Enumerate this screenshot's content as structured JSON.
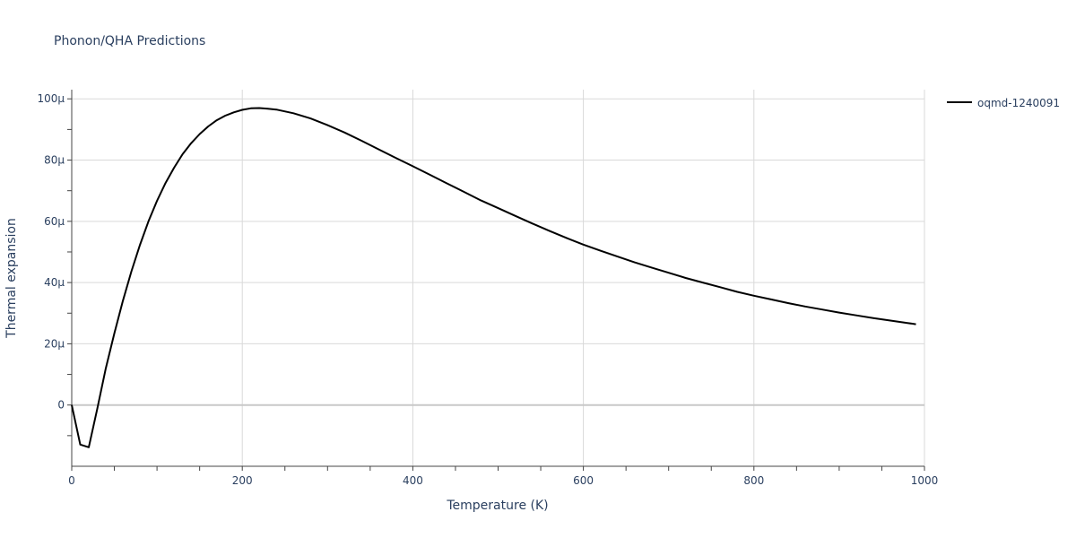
{
  "chart_data": {
    "type": "line",
    "title": "Phonon/QHA Predictions",
    "xlabel": "Temperature (K)",
    "ylabel": "Thermal expansion",
    "xlim": [
      0,
      1000
    ],
    "ylim": [
      -2e-05,
      0.000103
    ],
    "x_ticks": [
      0,
      200,
      400,
      600,
      800,
      1000
    ],
    "x_tick_labels": [
      "0",
      "200",
      "400",
      "600",
      "800",
      "1000"
    ],
    "y_ticks": [
      0,
      2e-05,
      4e-05,
      6e-05,
      8e-05,
      0.0001
    ],
    "y_tick_labels": [
      "0",
      "20μ",
      "40μ",
      "60μ",
      "80μ",
      "100μ"
    ],
    "grid": true,
    "legend_position": "top-right",
    "series": [
      {
        "name": "oqmd-1240091",
        "color": "#000000",
        "x": [
          0,
          10,
          20,
          30,
          40,
          50,
          60,
          70,
          80,
          90,
          100,
          110,
          120,
          130,
          140,
          150,
          160,
          170,
          180,
          190,
          200,
          210,
          220,
          230,
          240,
          260,
          280,
          300,
          320,
          340,
          360,
          380,
          400,
          420,
          440,
          460,
          480,
          500,
          520,
          540,
          560,
          580,
          600,
          620,
          640,
          660,
          680,
          700,
          720,
          740,
          760,
          780,
          800,
          820,
          840,
          860,
          880,
          900,
          920,
          940,
          960,
          980,
          990
        ],
        "y": [
          0,
          -1.29e-05,
          -1.38e-05,
          -1.2e-06,
          1.2e-05,
          2.35e-05,
          3.41e-05,
          4.37e-05,
          5.23e-05,
          6e-05,
          6.67e-05,
          7.25e-05,
          7.75e-05,
          8.19e-05,
          8.55e-05,
          8.85e-05,
          9.1e-05,
          9.3e-05,
          9.45e-05,
          9.56e-05,
          9.64e-05,
          9.69e-05,
          9.7e-05,
          9.68e-05,
          9.65e-05,
          9.53e-05,
          9.36e-05,
          9.14e-05,
          8.9e-05,
          8.63e-05,
          8.35e-05,
          8.07e-05,
          7.8e-05,
          7.52e-05,
          7.24e-05,
          6.96e-05,
          6.68e-05,
          6.43e-05,
          6.18e-05,
          5.93e-05,
          5.69e-05,
          5.46e-05,
          5.24e-05,
          5.04e-05,
          4.85e-05,
          4.66e-05,
          4.49e-05,
          4.32e-05,
          4.15e-05,
          4e-05,
          3.85e-05,
          3.7e-05,
          3.57e-05,
          3.45e-05,
          3.33e-05,
          3.22e-05,
          3.12e-05,
          3.02e-05,
          2.93e-05,
          2.84e-05,
          2.76e-05,
          2.68e-05,
          2.64e-05
        ]
      }
    ]
  }
}
